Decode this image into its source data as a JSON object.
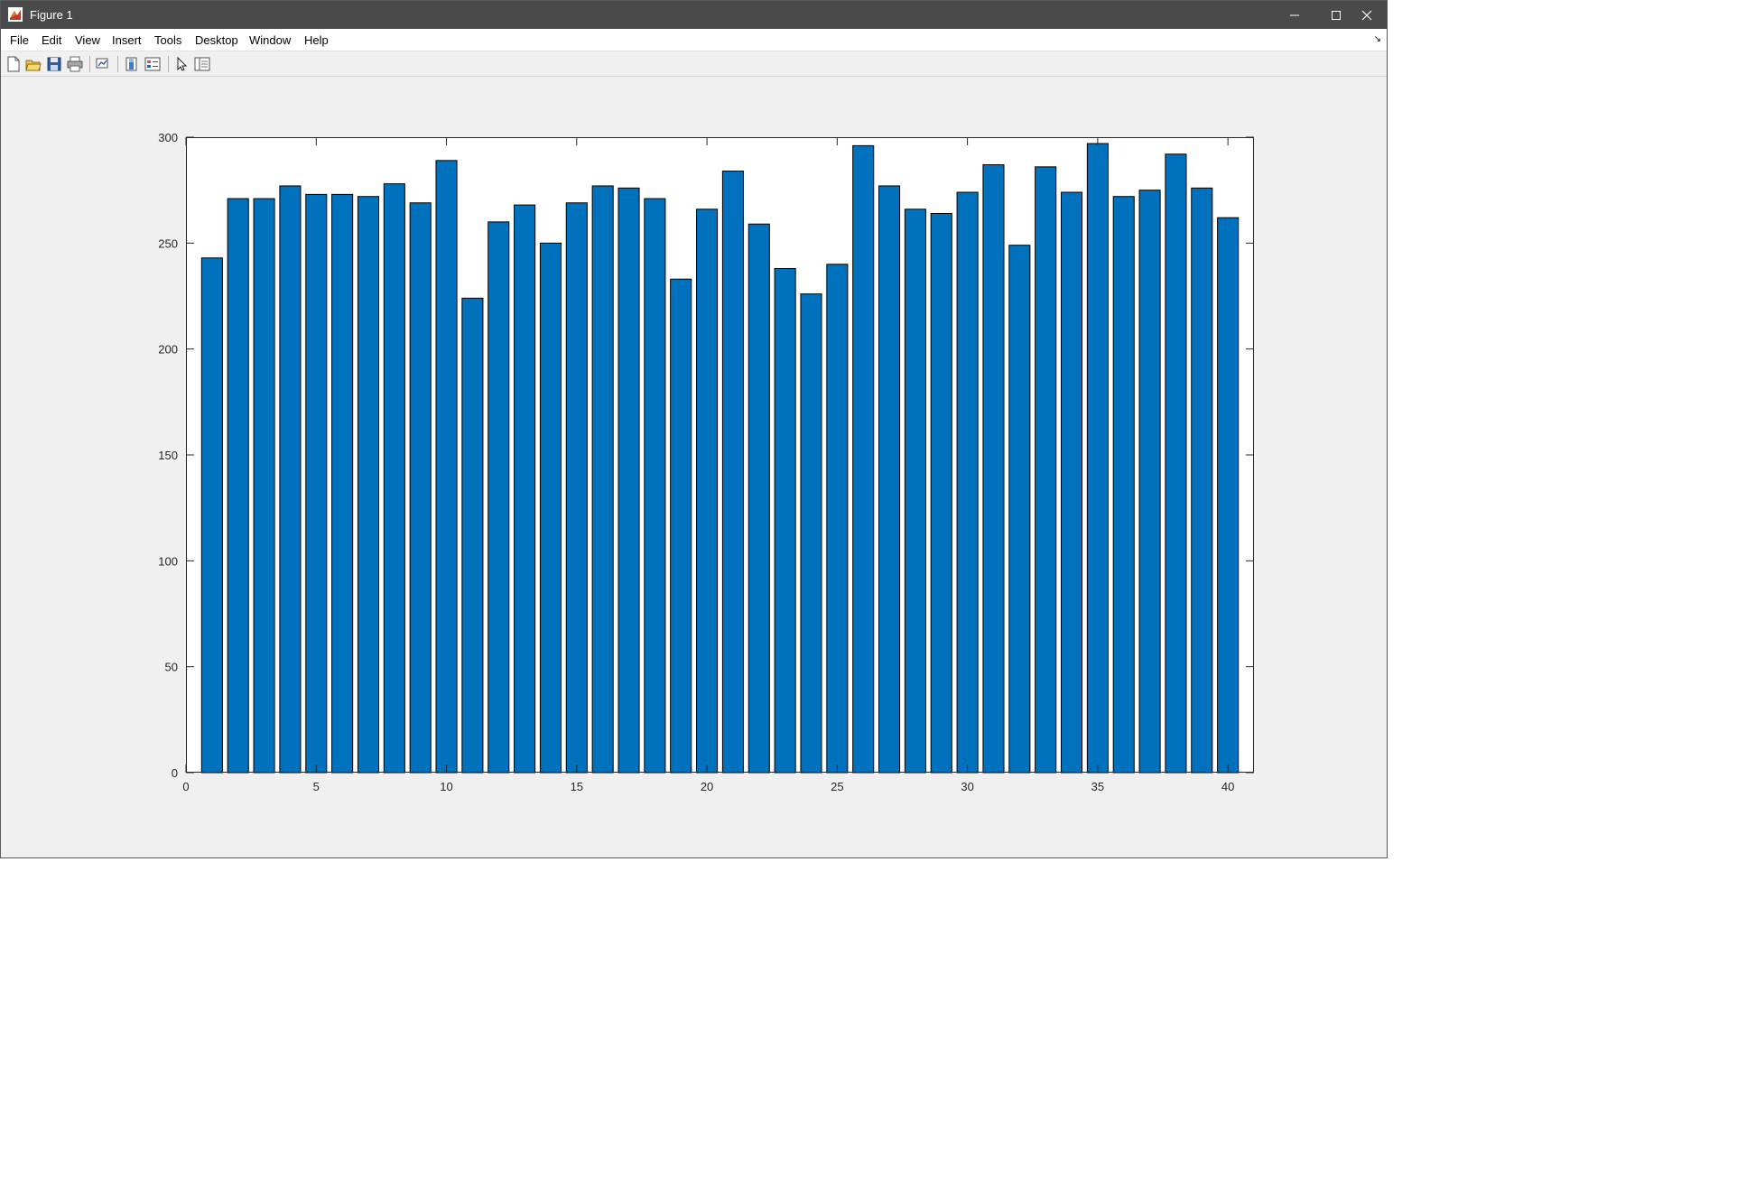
{
  "window": {
    "title": "Figure 1",
    "controls": {
      "minimize": "minimize-icon",
      "maximize": "maximize-icon",
      "close": "close-icon"
    }
  },
  "menubar": {
    "items": [
      "File",
      "Edit",
      "View",
      "Insert",
      "Tools",
      "Desktop",
      "Window",
      "Help"
    ]
  },
  "toolbar": {
    "buttons": [
      "new-figure-icon",
      "open-file-icon",
      "save-icon",
      "print-icon",
      "link-plot-icon",
      "insert-colorbar-icon",
      "insert-legend-icon",
      "edit-plot-icon",
      "property-inspector-icon"
    ]
  },
  "colors": {
    "bar": "#0072BD",
    "titlebar": "#4a4a4a",
    "figure_background": "#f0f0f0"
  },
  "chart_data": {
    "type": "bar",
    "x": [
      1,
      2,
      3,
      4,
      5,
      6,
      7,
      8,
      9,
      10,
      11,
      12,
      13,
      14,
      15,
      16,
      17,
      18,
      19,
      20,
      21,
      22,
      23,
      24,
      25,
      26,
      27,
      28,
      29,
      30,
      31,
      32,
      33,
      34,
      35,
      36,
      37,
      38,
      39,
      40
    ],
    "values": [
      243,
      271,
      271,
      277,
      273,
      273,
      272,
      278,
      269,
      289,
      224,
      260,
      268,
      250,
      269,
      277,
      276,
      271,
      233,
      266,
      284,
      259,
      238,
      226,
      240,
      296,
      277,
      266,
      264,
      274,
      287,
      249,
      286,
      274,
      297,
      272,
      275,
      292,
      276,
      262
    ],
    "xlim": [
      0,
      41
    ],
    "ylim": [
      0,
      300
    ],
    "xticks": [
      "0",
      "5",
      "10",
      "15",
      "20",
      "25",
      "30",
      "35",
      "40"
    ],
    "yticks": [
      "0",
      "50",
      "100",
      "150",
      "200",
      "250",
      "300"
    ],
    "title": "",
    "xlabel": "",
    "ylabel": "",
    "grid": false,
    "legend": "none"
  }
}
